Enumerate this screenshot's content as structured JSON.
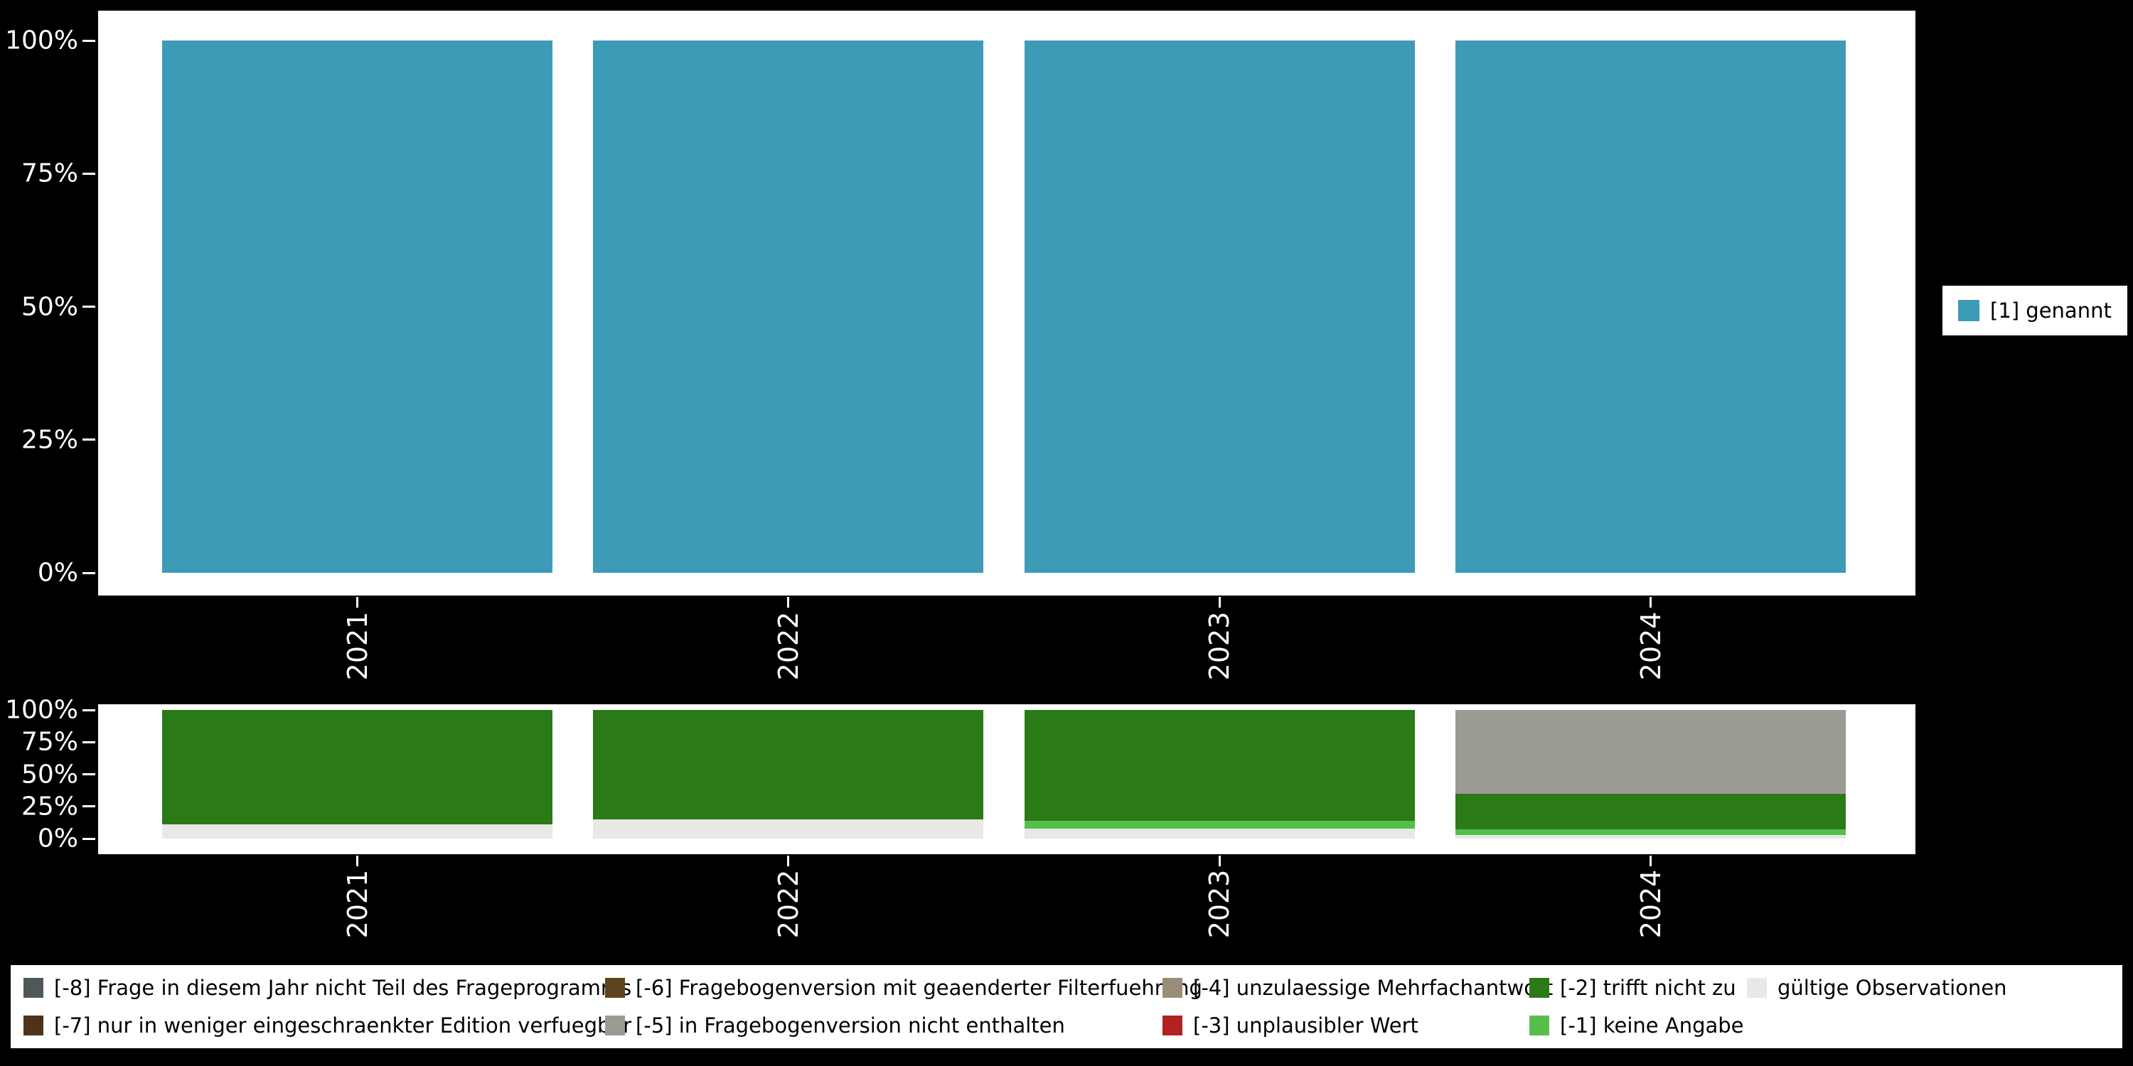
{
  "colors": {
    "background": "#000000",
    "panel": "#ffffff",
    "axis_text": "#ffffff",
    "bar_named": "#3d9bb7"
  },
  "chart_data": [
    {
      "type": "bar",
      "stacked": true,
      "unit": "percent",
      "title": "",
      "xlabel": "",
      "ylabel": "",
      "ylim": [
        0,
        100
      ],
      "grid": false,
      "categories": [
        "2021",
        "2022",
        "2023",
        "2024"
      ],
      "y_ticks": [
        "100%",
        "75%",
        "50%",
        "25%",
        "0%"
      ],
      "series": [
        {
          "name": "[1] genannt",
          "color": "#3d9bb7",
          "values": [
            100,
            100,
            100,
            100
          ]
        }
      ],
      "legend": {
        "position": "right",
        "items": [
          {
            "label": "[1] genannt",
            "color": "#3d9bb7"
          }
        ]
      }
    },
    {
      "type": "bar",
      "stacked": true,
      "unit": "percent",
      "title": "",
      "xlabel": "",
      "ylabel": "",
      "ylim": [
        0,
        100
      ],
      "grid": false,
      "categories": [
        "2021",
        "2022",
        "2023",
        "2024"
      ],
      "y_ticks": [
        "100%",
        "75%",
        "50%",
        "25%",
        "0%"
      ],
      "series": [
        {
          "name": "gültige Observationen",
          "color": "#e8e8e6",
          "values": [
            11,
            15,
            8,
            3
          ]
        },
        {
          "name": "[-1] keine Angabe",
          "color": "#56bf4a",
          "values": [
            0,
            0,
            6,
            4
          ]
        },
        {
          "name": "[-2] trifft nicht zu",
          "color": "#2a7a18",
          "values": [
            89,
            85,
            86,
            28
          ]
        },
        {
          "name": "[-5] in Fragebogenversion nicht enthalten",
          "color": "#9b9b93",
          "values": [
            0,
            0,
            0,
            65
          ]
        }
      ]
    }
  ],
  "bottom_legend": {
    "items": [
      {
        "label": "[-8] Frage in diesem Jahr nicht Teil des Frageprogramms",
        "color": "#4f5858"
      },
      {
        "label": "[-6] Fragebogenversion mit geaenderter Filterfuehrung",
        "color": "#5e4320"
      },
      {
        "label": "[-4] unzulaessige Mehrfachantwort",
        "color": "#9a8c7a"
      },
      {
        "label": "[-2] trifft nicht zu",
        "color": "#2a7a18"
      },
      {
        "label": "gültige Observationen",
        "color": "#e8e8e6"
      },
      {
        "label": "[-7] nur in weniger eingeschraenkter Edition verfuegbar",
        "color": "#4d3319"
      },
      {
        "label": "[-5] in Fragebogenversion nicht enthalten",
        "color": "#9b9b93"
      },
      {
        "label": "[-3] unplausibler Wert",
        "color": "#b22222"
      },
      {
        "label": "[-1] keine Angabe",
        "color": "#56bf4a"
      }
    ]
  }
}
